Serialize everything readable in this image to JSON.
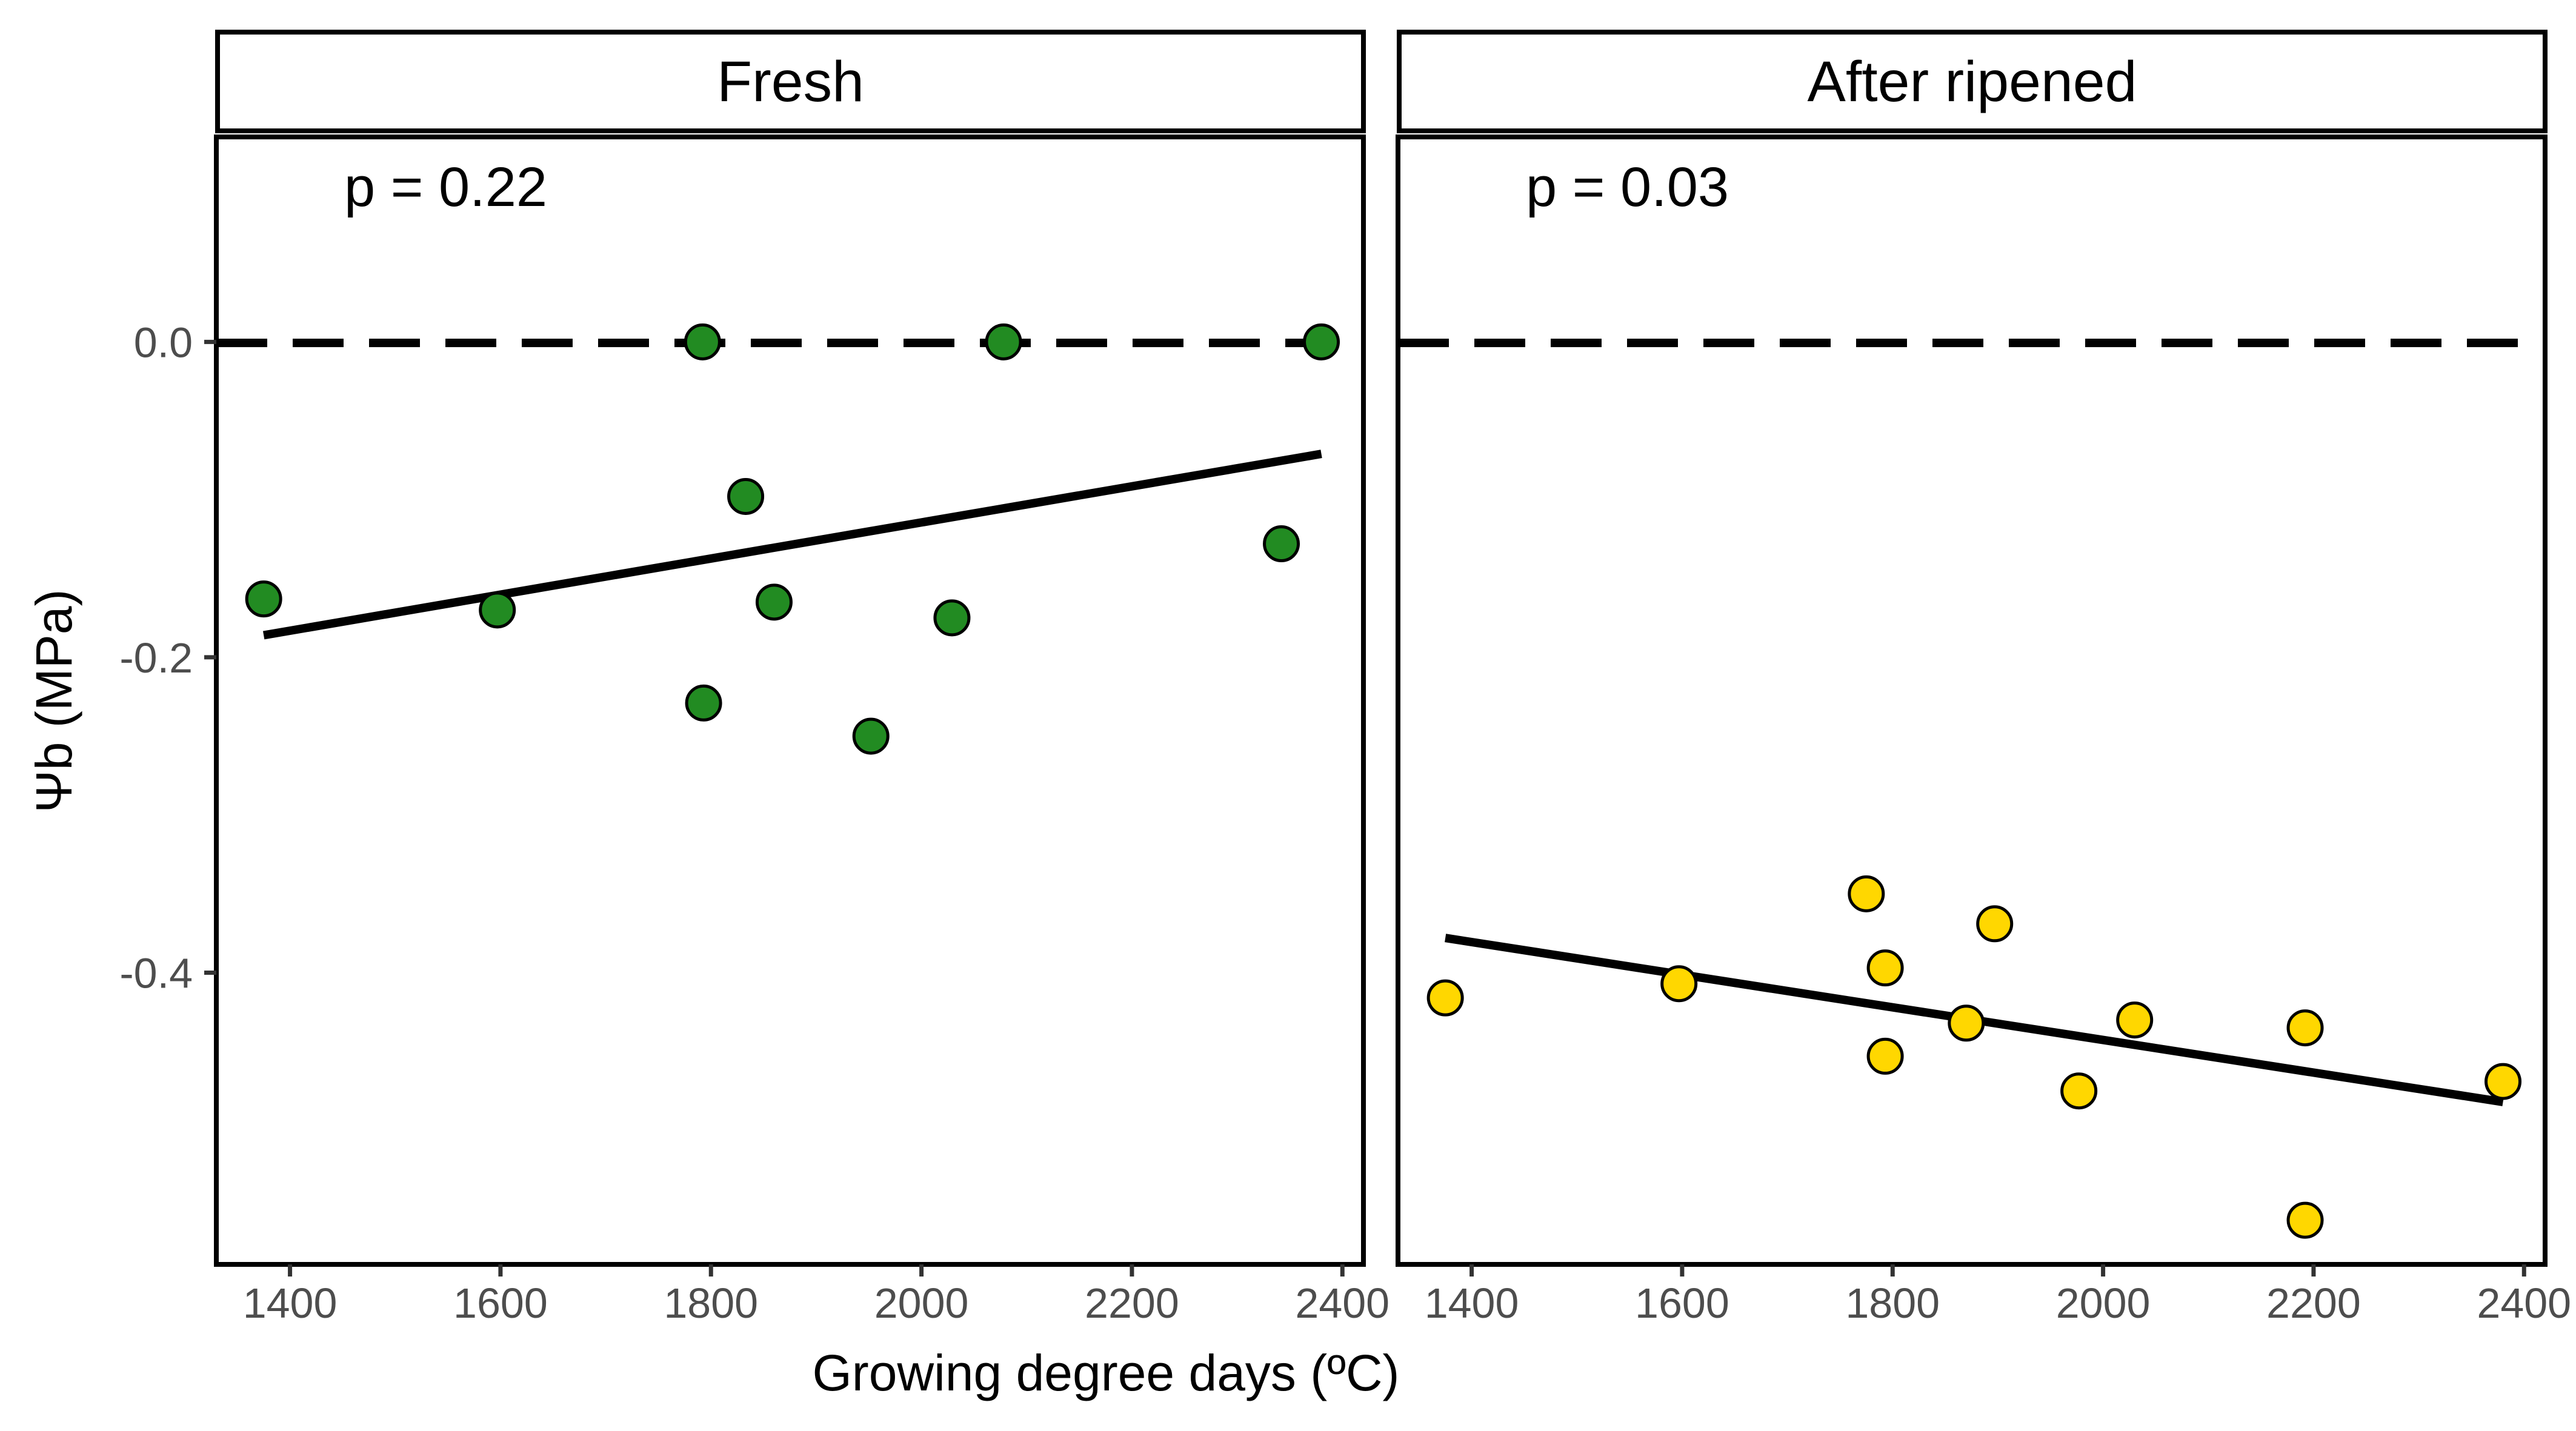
{
  "chart_data": {
    "type": "scatter",
    "xlabel": "Growing degree days (ºC)",
    "ylabel": "Ψb (MPa)",
    "xlim": [
      1330,
      2420
    ],
    "ylim": [
      -0.585,
      0.13
    ],
    "xticks": [
      1400,
      1600,
      1800,
      2000,
      2200,
      2400
    ],
    "xtick_labels": [
      "1400",
      "1600",
      "1800",
      "2000",
      "2200",
      "2400"
    ],
    "yticks": [
      0.0,
      -0.2,
      -0.4
    ],
    "ytick_labels": [
      "0.0",
      "-0.2",
      "-0.4"
    ],
    "reference_line": {
      "y": 0,
      "style": "dashed",
      "color": "#000000"
    },
    "grid": false,
    "legend": "none",
    "panels": [
      {
        "strip_label": "Fresh",
        "annotation": "p = 0.22",
        "point_color": "#228B22",
        "points": [
          {
            "x": 1375,
            "y": -0.163
          },
          {
            "x": 1597,
            "y": -0.17
          },
          {
            "x": 1792,
            "y": 0.0
          },
          {
            "x": 1793,
            "y": -0.229
          },
          {
            "x": 1833,
            "y": -0.098
          },
          {
            "x": 1860,
            "y": -0.165
          },
          {
            "x": 1952,
            "y": -0.25
          },
          {
            "x": 2029,
            "y": -0.175
          },
          {
            "x": 2078,
            "y": 0.0
          },
          {
            "x": 2342,
            "y": -0.128
          },
          {
            "x": 2380,
            "y": 0.0
          }
        ],
        "fit_line": {
          "x": [
            1375,
            2380
          ],
          "y": [
            -0.186,
            -0.071
          ]
        }
      },
      {
        "strip_label": "After ripened",
        "annotation": "p = 0.03",
        "point_color": "#FFD700",
        "points": [
          {
            "x": 1375,
            "y": -0.416
          },
          {
            "x": 1597,
            "y": -0.407
          },
          {
            "x": 1775,
            "y": -0.35
          },
          {
            "x": 1793,
            "y": -0.397
          },
          {
            "x": 1793,
            "y": -0.453
          },
          {
            "x": 1870,
            "y": -0.432
          },
          {
            "x": 1897,
            "y": -0.369
          },
          {
            "x": 1977,
            "y": -0.475
          },
          {
            "x": 2030,
            "y": -0.43
          },
          {
            "x": 2192,
            "y": -0.435
          },
          {
            "x": 2192,
            "y": -0.557
          },
          {
            "x": 2380,
            "y": -0.469
          }
        ],
        "fit_line": {
          "x": [
            1375,
            2380
          ],
          "y": [
            -0.378,
            -0.482
          ]
        }
      }
    ]
  }
}
